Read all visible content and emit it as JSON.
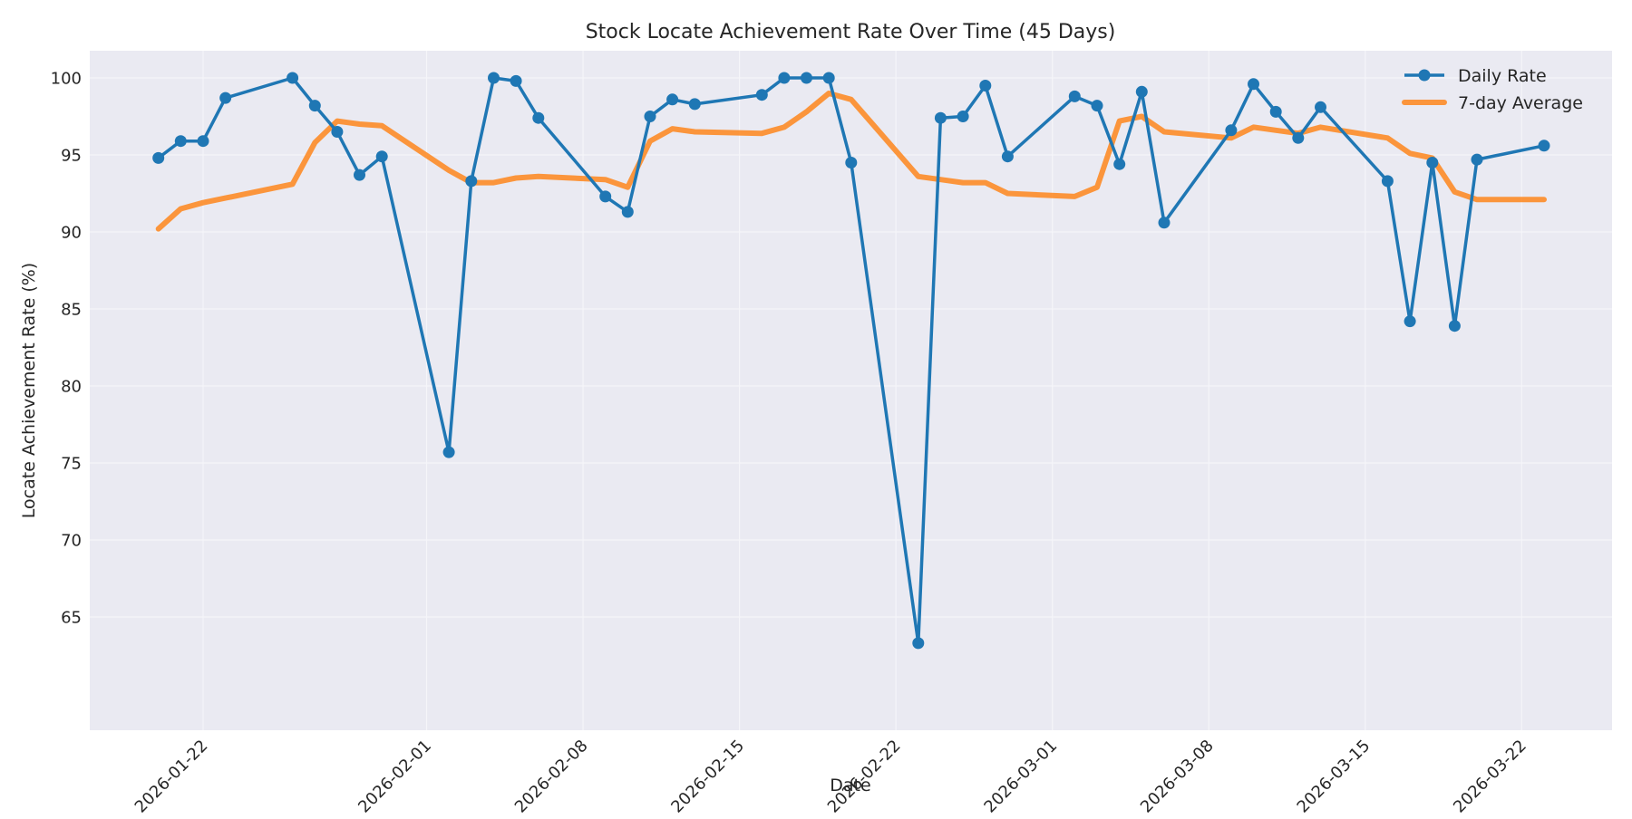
{
  "chart_data": {
    "type": "line",
    "title": "Stock Locate Achievement Rate Over Time (45 Days)",
    "xlabel": "Date",
    "ylabel": "Locate Achievement Rate (%)",
    "ylim": [
      61.7,
      101.9
    ],
    "yticks": [
      65,
      70,
      75,
      80,
      85,
      90,
      95,
      100
    ],
    "xticks": [
      "2026-01-22",
      "2026-02-01",
      "2026-02-08",
      "2026-02-15",
      "2026-02-22",
      "2026-03-01",
      "2026-03-08",
      "2026-03-15",
      "2026-03-22"
    ],
    "xlim": [
      "2026-01-17",
      "2026-03-26"
    ],
    "grid": true,
    "legend_position": "upper right",
    "x": [
      "2026-01-20",
      "2026-01-21",
      "2026-01-22",
      "2026-01-23",
      "2026-01-26",
      "2026-01-27",
      "2026-01-28",
      "2026-01-29",
      "2026-01-30",
      "2026-02-02",
      "2026-02-03",
      "2026-02-04",
      "2026-02-05",
      "2026-02-06",
      "2026-02-09",
      "2026-02-10",
      "2026-02-11",
      "2026-02-12",
      "2026-02-13",
      "2026-02-16",
      "2026-02-17",
      "2026-02-18",
      "2026-02-19",
      "2026-02-20",
      "2026-02-23",
      "2026-02-24",
      "2026-02-25",
      "2026-02-26",
      "2026-02-27",
      "2026-03-02",
      "2026-03-03",
      "2026-03-04",
      "2026-03-05",
      "2026-03-06",
      "2026-03-09",
      "2026-03-10",
      "2026-03-11",
      "2026-03-12",
      "2026-03-13",
      "2026-03-16",
      "2026-03-17",
      "2026-03-18",
      "2026-03-19",
      "2026-03-20",
      "2026-03-23"
    ],
    "series": [
      {
        "name": "Daily Rate",
        "color": "#1f77b4",
        "marker": "circle",
        "values": [
          94.8,
          95.9,
          95.9,
          98.7,
          100.0,
          98.2,
          96.5,
          93.7,
          94.9,
          75.7,
          93.3,
          100.0,
          99.8,
          97.4,
          92.3,
          91.3,
          97.5,
          98.6,
          98.3,
          98.9,
          100.0,
          100.0,
          100.0,
          94.5,
          63.3,
          97.4,
          97.5,
          99.5,
          94.9,
          98.8,
          98.2,
          94.4,
          99.1,
          90.6,
          96.6,
          99.6,
          97.8,
          96.1,
          98.1,
          93.3,
          84.2,
          94.5,
          83.9,
          94.7,
          95.6
        ]
      },
      {
        "name": "7-day Average",
        "color": "#ff7f0e",
        "marker": "none",
        "values": [
          90.2,
          91.5,
          91.9,
          92.2,
          93.1,
          95.8,
          97.2,
          97.0,
          96.9,
          94.0,
          93.2,
          93.2,
          93.5,
          93.6,
          93.4,
          92.9,
          95.9,
          96.7,
          96.5,
          96.4,
          96.8,
          97.8,
          99.0,
          98.6,
          93.6,
          93.4,
          93.2,
          93.2,
          92.5,
          92.3,
          92.9,
          97.2,
          97.5,
          96.5,
          96.1,
          96.8,
          96.6,
          96.4,
          96.8,
          96.1,
          95.1,
          94.8,
          92.6,
          92.1,
          92.1
        ]
      }
    ]
  },
  "legend": {
    "items": [
      {
        "label": "Daily Rate",
        "color": "#1f77b4"
      },
      {
        "label": "7-day Average",
        "color": "#ff7f0e"
      }
    ]
  },
  "style": {
    "plot_bg": "#eaeaf2",
    "grid_color": "#f4f4f8",
    "daily_color": "#1f77b4",
    "avg_color": "#ff7f0e"
  }
}
